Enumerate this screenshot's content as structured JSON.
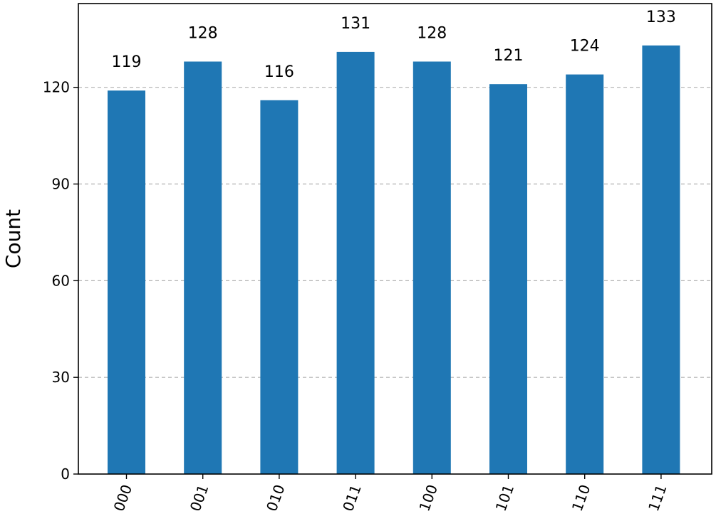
{
  "chart_data": {
    "type": "bar",
    "categories": [
      "000",
      "001",
      "010",
      "011",
      "100",
      "101",
      "110",
      "111"
    ],
    "values": [
      119,
      128,
      116,
      131,
      128,
      121,
      124,
      133
    ],
    "title": "",
    "xlabel": "",
    "ylabel": "Count",
    "ylim": [
      0,
      146
    ],
    "yticks": [
      0,
      30,
      60,
      90,
      120
    ],
    "grid": "horizontal dashed",
    "bar_color": "#1f77b4",
    "grid_color": "#b0b0b0",
    "x_tick_rotation_deg": 70,
    "legend": "none"
  }
}
